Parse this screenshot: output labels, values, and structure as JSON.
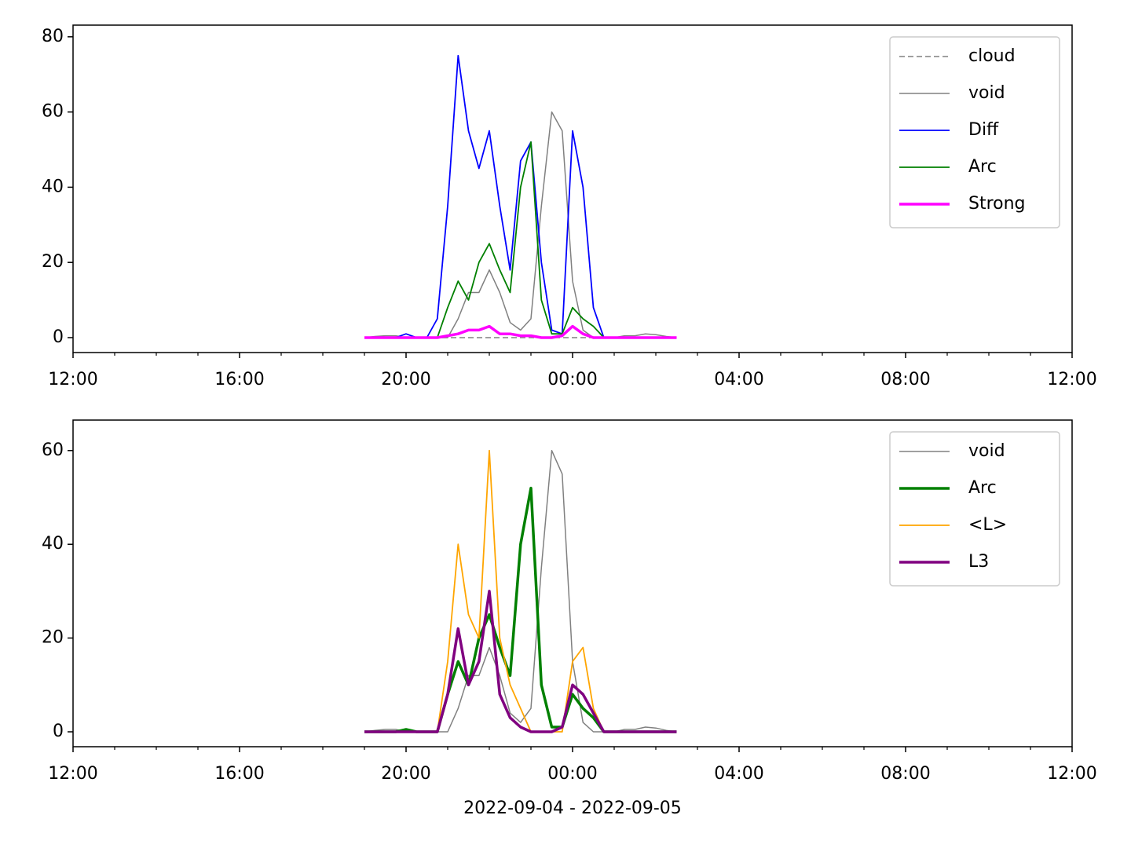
{
  "chart_data": [
    {
      "type": "line",
      "legend": "upper right",
      "x": [
        "2022-09-04T19:00",
        "2022-09-04T19:15",
        "2022-09-04T19:30",
        "2022-09-04T19:45",
        "2022-09-04T20:00",
        "2022-09-04T20:15",
        "2022-09-04T20:30",
        "2022-09-04T20:45",
        "2022-09-04T21:00",
        "2022-09-04T21:15",
        "2022-09-04T21:30",
        "2022-09-04T21:45",
        "2022-09-04T22:00",
        "2022-09-04T22:15",
        "2022-09-04T22:30",
        "2022-09-04T22:45",
        "2022-09-04T23:00",
        "2022-09-04T23:15",
        "2022-09-04T23:30",
        "2022-09-04T23:45",
        "2022-09-05T00:00",
        "2022-09-05T00:15",
        "2022-09-05T00:30",
        "2022-09-05T00:45",
        "2022-09-05T01:00",
        "2022-09-05T01:15",
        "2022-09-05T01:30",
        "2022-09-05T01:45",
        "2022-09-05T02:00",
        "2022-09-05T02:15",
        "2022-09-05T02:30"
      ],
      "series": [
        {
          "name": "cloud",
          "color": "#808080",
          "linestyle": "dashed",
          "linewidth": 1.5,
          "values": [
            0,
            0,
            0,
            0,
            0,
            0,
            0,
            0,
            0,
            0,
            0,
            0,
            0,
            0,
            0,
            0,
            0,
            0,
            0,
            0,
            0,
            0,
            0,
            0,
            0,
            0,
            0,
            0,
            0,
            0,
            0
          ]
        },
        {
          "name": "void",
          "color": "#808080",
          "linestyle": "solid",
          "linewidth": 1.5,
          "values": [
            0,
            0.3,
            0.5,
            0.5,
            0,
            0,
            0,
            0,
            0,
            5,
            12,
            12,
            18,
            12,
            4,
            2,
            5,
            35,
            60,
            55,
            15,
            2,
            0,
            0,
            0,
            0.5,
            0.5,
            1,
            0.8,
            0.3,
            0
          ]
        },
        {
          "name": "Diff",
          "color": "#0000ff",
          "linestyle": "solid",
          "linewidth": 1.8,
          "values": [
            0,
            0,
            0,
            0,
            1,
            0,
            0,
            5,
            35,
            75,
            55,
            45,
            55,
            35,
            18,
            47,
            52,
            20,
            2,
            1,
            55,
            40,
            8,
            0,
            0,
            0,
            0,
            0,
            0,
            0,
            0
          ]
        },
        {
          "name": "Arc",
          "color": "#008000",
          "linestyle": "solid",
          "linewidth": 1.8,
          "values": [
            0,
            0,
            0,
            0,
            0,
            0,
            0,
            0,
            8,
            15,
            10,
            20,
            25,
            18,
            12,
            40,
            52,
            10,
            1,
            1,
            8,
            5,
            3,
            0,
            0,
            0,
            0,
            0,
            0,
            0,
            0
          ]
        },
        {
          "name": "Strong",
          "color": "#ff00ff",
          "linestyle": "solid",
          "linewidth": 3.5,
          "values": [
            0,
            0,
            0,
            0,
            0,
            0,
            0,
            0,
            0.5,
            1,
            2,
            2,
            3,
            1,
            1,
            0.5,
            0.5,
            0,
            0,
            0.5,
            3,
            1,
            0,
            0,
            0,
            0,
            0,
            0,
            0,
            0,
            0
          ]
        }
      ],
      "xlim": [
        "2022-09-04T12:00",
        "2022-09-05T12:00"
      ],
      "xticks": [
        {
          "value": "2022-09-04T12:00",
          "label": "12:00"
        },
        {
          "value": "2022-09-04T16:00",
          "label": "16:00"
        },
        {
          "value": "2022-09-04T20:00",
          "label": "20:00"
        },
        {
          "value": "2022-09-05T00:00",
          "label": "00:00"
        },
        {
          "value": "2022-09-05T04:00",
          "label": "04:00"
        },
        {
          "value": "2022-09-05T08:00",
          "label": "08:00"
        },
        {
          "value": "2022-09-05T12:00",
          "label": "12:00"
        }
      ],
      "xminorticks": [
        "2022-09-04T13:00",
        "2022-09-04T14:00",
        "2022-09-04T15:00",
        "2022-09-04T17:00",
        "2022-09-04T18:00",
        "2022-09-04T19:00",
        "2022-09-04T21:00",
        "2022-09-04T22:00",
        "2022-09-04T23:00",
        "2022-09-05T01:00",
        "2022-09-05T02:00",
        "2022-09-05T03:00",
        "2022-09-05T05:00",
        "2022-09-05T06:00",
        "2022-09-05T07:00",
        "2022-09-05T09:00",
        "2022-09-05T10:00",
        "2022-09-05T11:00"
      ],
      "ylim": [
        -3.97,
        83.1
      ],
      "yticks": [
        0,
        20,
        40,
        60,
        80
      ]
    },
    {
      "type": "line",
      "legend": "upper right",
      "xlabel": "2022-09-04 - 2022-09-05",
      "x": [
        "2022-09-04T19:00",
        "2022-09-04T19:15",
        "2022-09-04T19:30",
        "2022-09-04T19:45",
        "2022-09-04T20:00",
        "2022-09-04T20:15",
        "2022-09-04T20:30",
        "2022-09-04T20:45",
        "2022-09-04T21:00",
        "2022-09-04T21:15",
        "2022-09-04T21:30",
        "2022-09-04T21:45",
        "2022-09-04T22:00",
        "2022-09-04T22:15",
        "2022-09-04T22:30",
        "2022-09-04T22:45",
        "2022-09-04T23:00",
        "2022-09-04T23:15",
        "2022-09-04T23:30",
        "2022-09-04T23:45",
        "2022-09-05T00:00",
        "2022-09-05T00:15",
        "2022-09-05T00:30",
        "2022-09-05T00:45",
        "2022-09-05T01:00",
        "2022-09-05T01:15",
        "2022-09-05T01:30",
        "2022-09-05T01:45",
        "2022-09-05T02:00",
        "2022-09-05T02:15",
        "2022-09-05T02:30"
      ],
      "series": [
        {
          "name": "void",
          "color": "#808080",
          "linestyle": "solid",
          "linewidth": 1.5,
          "values": [
            0,
            0.3,
            0.5,
            0.5,
            0,
            0,
            0,
            0,
            0,
            5,
            12,
            12,
            18,
            12,
            4,
            2,
            5,
            35,
            60,
            55,
            15,
            2,
            0,
            0,
            0,
            0.5,
            0.5,
            1,
            0.8,
            0.3,
            0
          ]
        },
        {
          "name": "Arc",
          "color": "#008000",
          "linestyle": "solid",
          "linewidth": 3.5,
          "values": [
            0,
            0,
            0,
            0,
            0.5,
            0,
            0,
            0,
            8,
            15,
            10,
            20,
            25,
            18,
            12,
            40,
            52,
            10,
            1,
            1,
            8,
            5,
            3,
            0,
            0,
            0,
            0,
            0,
            0,
            0,
            0
          ]
        },
        {
          "name": "<L>",
          "color": "#ffa500",
          "linestyle": "solid",
          "linewidth": 1.8,
          "values": [
            0,
            0,
            0,
            0,
            0,
            0,
            0,
            0,
            15,
            40,
            25,
            20,
            60,
            20,
            10,
            5,
            0,
            0,
            0,
            0,
            15,
            18,
            5,
            0,
            0,
            0,
            0,
            0,
            0,
            0,
            0
          ]
        },
        {
          "name": "L3",
          "color": "#800080",
          "linestyle": "solid",
          "linewidth": 3.5,
          "values": [
            0,
            0,
            0,
            0,
            0,
            0,
            0,
            0,
            8,
            22,
            10,
            15,
            30,
            8,
            3,
            1,
            0,
            0,
            0,
            1,
            10,
            8,
            4,
            0,
            0,
            0,
            0,
            0,
            0,
            0,
            0
          ]
        }
      ],
      "xlim": [
        "2022-09-04T12:00",
        "2022-09-05T12:00"
      ],
      "xticks": [
        {
          "value": "2022-09-04T12:00",
          "label": "12:00"
        },
        {
          "value": "2022-09-04T16:00",
          "label": "16:00"
        },
        {
          "value": "2022-09-04T20:00",
          "label": "20:00"
        },
        {
          "value": "2022-09-05T00:00",
          "label": "00:00"
        },
        {
          "value": "2022-09-05T04:00",
          "label": "04:00"
        },
        {
          "value": "2022-09-05T08:00",
          "label": "08:00"
        },
        {
          "value": "2022-09-05T12:00",
          "label": "12:00"
        }
      ],
      "xminorticks": [
        "2022-09-04T13:00",
        "2022-09-04T14:00",
        "2022-09-04T15:00",
        "2022-09-04T17:00",
        "2022-09-04T18:00",
        "2022-09-04T19:00",
        "2022-09-04T21:00",
        "2022-09-04T22:00",
        "2022-09-04T23:00",
        "2022-09-05T01:00",
        "2022-09-05T02:00",
        "2022-09-05T03:00",
        "2022-09-05T05:00",
        "2022-09-05T06:00",
        "2022-09-05T07:00",
        "2022-09-05T09:00",
        "2022-09-05T10:00",
        "2022-09-05T11:00"
      ],
      "ylim": [
        -3.18,
        66.5
      ],
      "yticks": [
        0,
        20,
        40,
        60
      ]
    }
  ]
}
